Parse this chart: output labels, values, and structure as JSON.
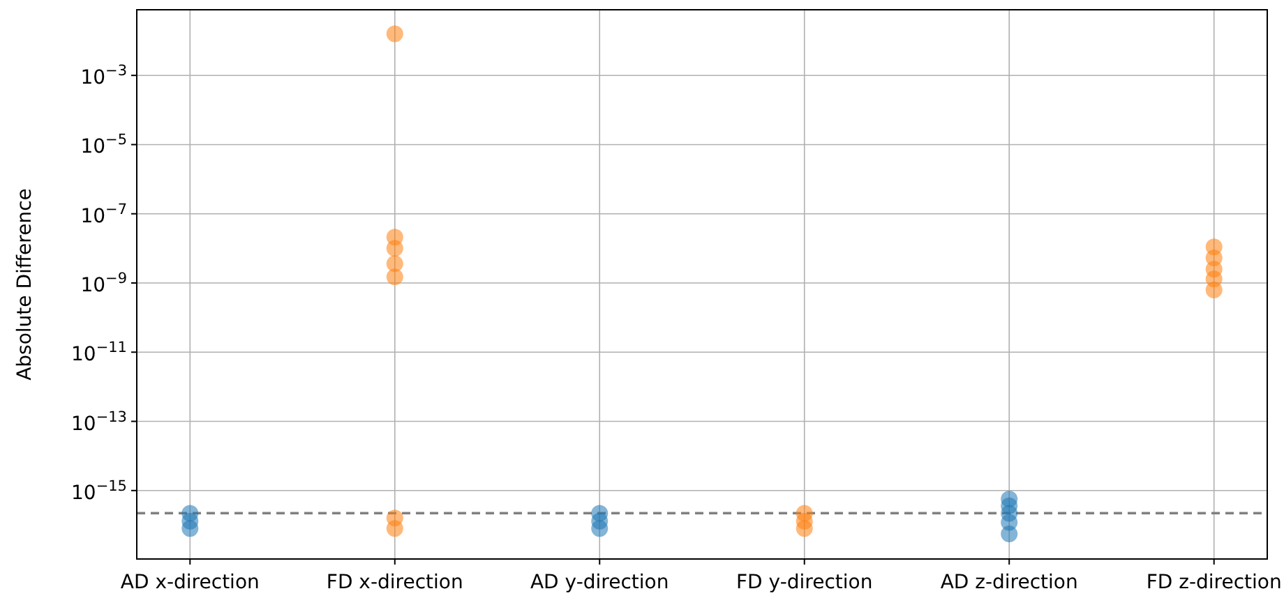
{
  "chart_data": {
    "type": "scatter",
    "ylabel": "Absolute Difference",
    "categories": [
      "AD x-direction",
      "FD x-direction",
      "AD y-direction",
      "FD y-direction",
      "AD z-direction",
      "FD z-direction"
    ],
    "series": [
      {
        "color": "#1f77b4",
        "x": [
          "AD x-direction",
          "AD x-direction",
          "AD x-direction",
          "AD y-direction",
          "AD y-direction",
          "AD y-direction",
          "AD z-direction",
          "AD z-direction",
          "AD z-direction",
          "AD z-direction",
          "AD z-direction"
        ],
        "values": [
          2.2e-16,
          1.3e-16,
          8e-17,
          2.2e-16,
          1.3e-16,
          8e-17,
          5.7e-16,
          3.6e-16,
          2.2e-16,
          1.2e-16,
          5.6e-17
        ]
      },
      {
        "color": "#ff7f0e",
        "x": [
          "FD x-direction",
          "FD x-direction",
          "FD x-direction",
          "FD x-direction",
          "FD x-direction",
          "FD x-direction",
          "FD x-direction",
          "FD y-direction",
          "FD y-direction",
          "FD y-direction",
          "FD z-direction",
          "FD z-direction",
          "FD z-direction",
          "FD z-direction",
          "FD z-direction"
        ],
        "values": [
          0.016,
          2.1e-08,
          1e-08,
          3.6e-09,
          1.5e-09,
          1.6e-16,
          8e-17,
          2.2e-16,
          1.3e-16,
          8e-17,
          1.1e-08,
          5.3e-09,
          2.5e-09,
          1.3e-09,
          6.3e-10
        ]
      }
    ],
    "log": "y",
    "ylim": [
      1.05e-17,
      0.079
    ],
    "yticks": [
      {
        "value": 1e-15,
        "label": "10$^{−15}$"
      },
      {
        "value": 1e-13,
        "label": "10$^{−13}$"
      },
      {
        "value": 1e-11,
        "label": "10$^{−11}$"
      },
      {
        "value": 1e-09,
        "label": "10$^{−9}$"
      },
      {
        "value": 1e-07,
        "label": "10$^{−7}$"
      },
      {
        "value": 1e-05,
        "label": "10$^{−5}$"
      },
      {
        "value": 0.001,
        "label": "10$^{−3}$"
      }
    ],
    "grid": true,
    "marker": "circle",
    "ref_lines": [
      {
        "axis": "y",
        "value": 2.22e-16,
        "color": "#808080",
        "line_style": "dashed"
      }
    ]
  }
}
